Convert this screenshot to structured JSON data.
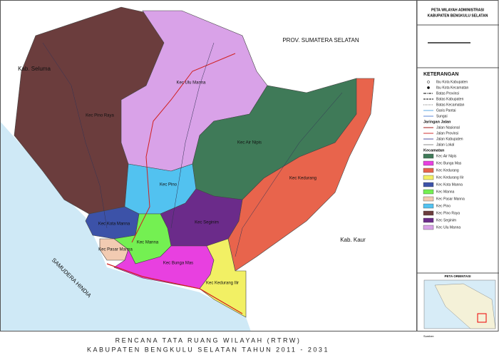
{
  "map": {
    "labels": [
      "PROV. SUMATERA SELATAN",
      "Kab. Seluma",
      "Kab. Kaur",
      "SAMUDERA HINDIA",
      "Kec Pino Raya",
      "Kec Ulu Manna",
      "Kec Air Nipis",
      "Kec Pino",
      "Kec Kedurang",
      "Kec Kota Manna",
      "Kec Seginim",
      "Kec Manna",
      "Kec Bunga Mas",
      "Kec Kedurang Ilir",
      "Kec Pasar Manna"
    ]
  },
  "footer": {
    "title": [
      "RENCANA TATA RUANG WILAYAH (RTRW)",
      "KABUPATEN BENGKULU SELATAN TAHUN 2011 - 2031"
    ]
  },
  "panel": {
    "title": [
      "PETA WILAYAH ADMINISTRASI",
      "KABUPATEN BENGKULU SELATAN"
    ],
    "legend_title": "KETERANGAN",
    "inset_title": "PETA ORIENTASI",
    "source": "Sumber:",
    "symbols": [
      "Ibu Kota Kabupaten",
      "Ibu Kota Kecamatan",
      "Batas Provinsi",
      "Batas Kabupaten",
      "Batas Kecamatan",
      "Garis Pantai",
      "Sungai"
    ],
    "roads_title": "Jaringan Jalan",
    "roads": [
      "Jalan Nasional",
      "Jalan Provinsi",
      "Jalan Kabupaten",
      "Jalan Lokal"
    ],
    "districts_title": "Kecamatan",
    "districts": [
      {
        "name": "Kec Air Nipis",
        "color": "#3f7a58"
      },
      {
        "name": "Kec Bunga Mas",
        "color": "#e840e0"
      },
      {
        "name": "Kec Kedurang",
        "color": "#e8644c"
      },
      {
        "name": "Kec Kedurang Ilir",
        "color": "#f2f064"
      },
      {
        "name": "Kec Kota Manna",
        "color": "#3c52a8"
      },
      {
        "name": "Kec Manna",
        "color": "#74f052"
      },
      {
        "name": "Kec Pasar Manna",
        "color": "#f2cbb2"
      },
      {
        "name": "Kec Pino",
        "color": "#52c2f0"
      },
      {
        "name": "Kec Pino Raya",
        "color": "#6b3d3d"
      },
      {
        "name": "Kec Seginim",
        "color": "#6b2b8a"
      },
      {
        "name": "Kec Ulu Manna",
        "color": "#d9a2e8"
      }
    ]
  }
}
